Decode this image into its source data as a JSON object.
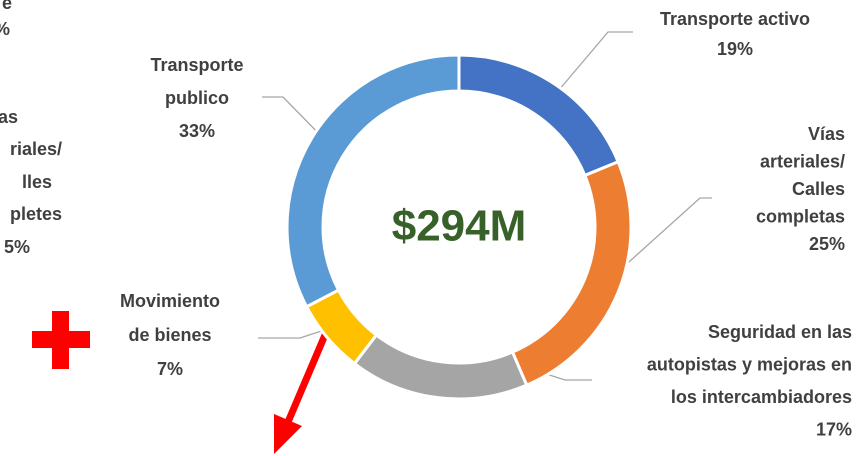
{
  "chart_data": {
    "type": "donut",
    "center_label": "$294M",
    "categories": [
      [
        "Transporte activo"
      ],
      [
        "Vías",
        "arteriales/",
        "Calles",
        "completas"
      ],
      [
        "Seguridad en las",
        "autopistas y mejoras en",
        "los intercambiadores"
      ],
      [
        "Movimiento",
        "de bienes"
      ],
      [
        "Transporte",
        "publico"
      ]
    ],
    "values": [
      19,
      25,
      17,
      7,
      33
    ],
    "value_labels": [
      "19%",
      "25%",
      "17%",
      "7%",
      "33%"
    ],
    "colors": [
      "#4472c4",
      "#ed7d31",
      "#a5a5a5",
      "#ffc000",
      "#5b9bd5"
    ],
    "cropped_fragments": [
      "e",
      "%",
      "ías",
      "riales/",
      "lles",
      "pletes",
      "5%"
    ]
  }
}
